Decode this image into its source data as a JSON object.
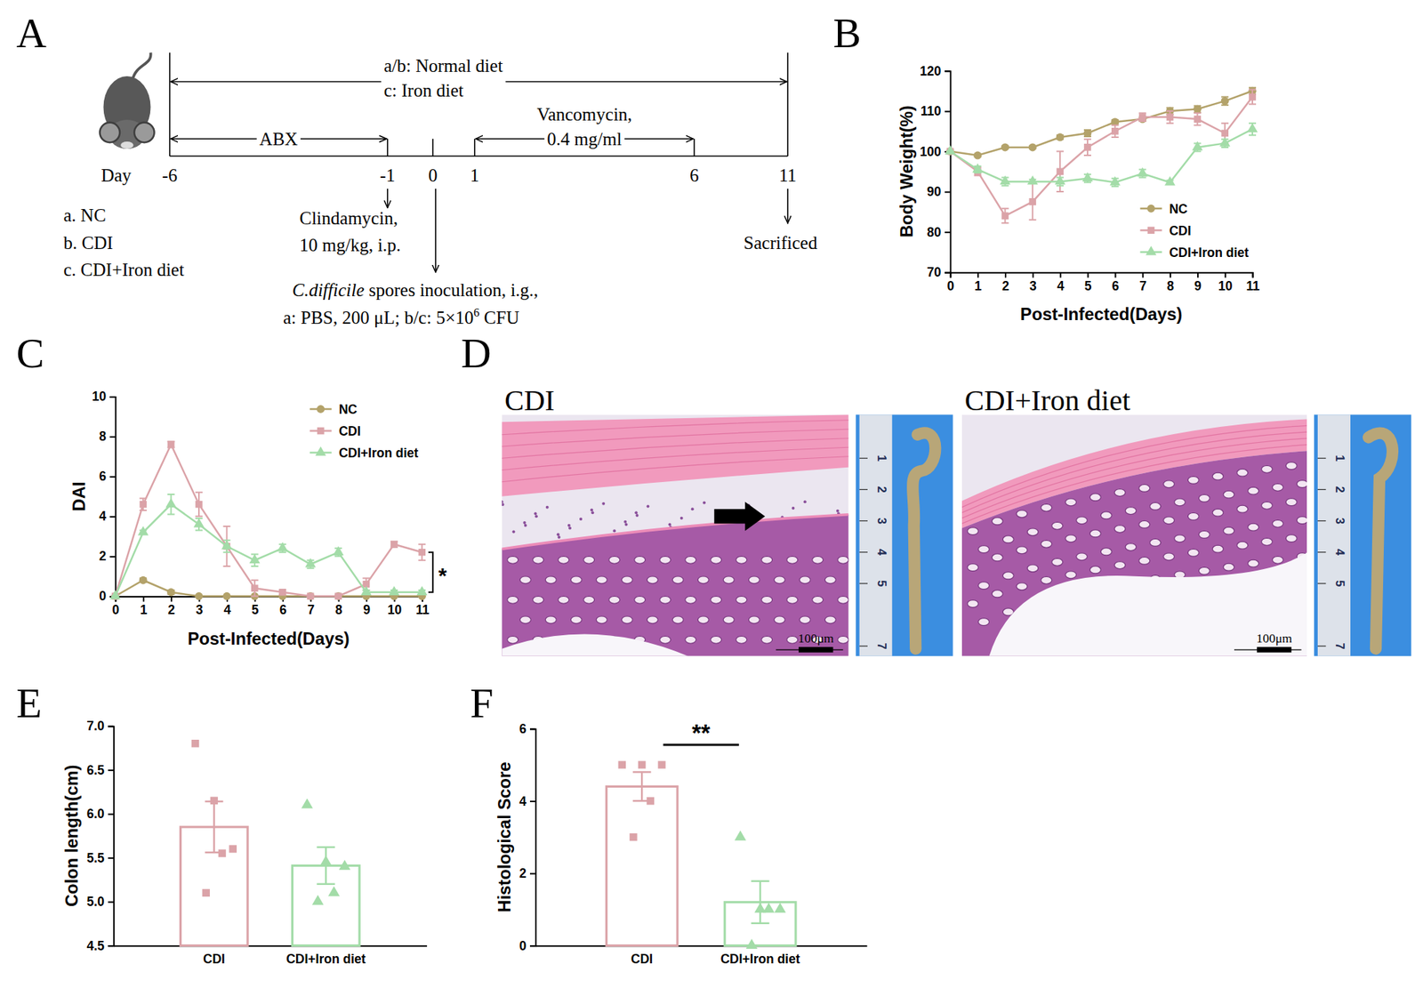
{
  "panel_labels": [
    "A",
    "B",
    "C",
    "D",
    "E",
    "F"
  ],
  "diagram": {
    "groups": [
      "a. NC",
      "b. CDI",
      "c. CDI+Iron diet"
    ],
    "diet": [
      "a/b: Normal diet",
      "c: Iron diet"
    ],
    "timeline": {
      "label": "Day",
      "days": [
        -6,
        -1,
        0,
        1,
        6,
        11
      ]
    },
    "abx": "ABX",
    "vancomycin": [
      "Vancomycin,",
      "0.4 mg/ml"
    ],
    "clindamycin": [
      "Clindamycin,",
      "10 mg/kg, i.p."
    ],
    "inoculation": {
      "species": "C.difficile",
      "line1": " spores inoculation, i.g.,",
      "line2": "a: PBS, 200 μL; b/c: 5×10",
      "line2_sup": "6",
      "line2_end": " CFU"
    },
    "sacrificed": "Sacrificed"
  },
  "chart_data": [
    {
      "type": "line",
      "x_label": "Post-Infected(Days)",
      "y_label": "Body Weight(%)",
      "x": [
        0,
        1,
        2,
        3,
        4,
        5,
        6,
        7,
        8,
        9,
        10,
        11
      ],
      "xlim": [
        0,
        11
      ],
      "ylim": [
        70,
        120
      ],
      "xticks": [
        0,
        1,
        2,
        3,
        4,
        5,
        6,
        7,
        8,
        9,
        10,
        11
      ],
      "yticks": [
        70,
        80,
        90,
        100,
        110,
        120
      ],
      "legend": "bottom-right",
      "series": [
        {
          "name": "NC",
          "color": "#b3a26a",
          "marker": "circle",
          "values": [
            100,
            99,
            101,
            101,
            103.5,
            104.5,
            107.3,
            108,
            110,
            110.5,
            112.5,
            115
          ],
          "errors": [
            0,
            0.3,
            0.3,
            0.3,
            0.5,
            0.8,
            0.5,
            0.5,
            0.8,
            0.8,
            1,
            0.8
          ]
        },
        {
          "name": "CDI",
          "color": "#dba3a8",
          "marker": "square",
          "values": [
            100,
            95,
            84,
            87.5,
            95,
            101,
            105,
            108.5,
            108.5,
            108,
            104.5,
            113.5
          ],
          "errors": [
            0,
            1,
            1.8,
            4.5,
            5,
            2,
            1.5,
            1,
            1.5,
            1.5,
            2.5,
            1.8
          ]
        },
        {
          "name": "CDI+Iron diet",
          "color": "#a3dca8",
          "marker": "triangle",
          "values": [
            100,
            95.5,
            92.5,
            92.5,
            92.5,
            93.3,
            92.3,
            94.5,
            92.3,
            101,
            102,
            105.5
          ],
          "errors": [
            0,
            0.8,
            1,
            0.5,
            1,
            1,
            1,
            1,
            0.5,
            1,
            1,
            1.5
          ]
        }
      ]
    },
    {
      "type": "line",
      "x_label": "Post-Infected(Days)",
      "y_label": "DAI",
      "x": [
        0,
        1,
        2,
        3,
        4,
        5,
        6,
        7,
        8,
        9,
        10,
        11
      ],
      "xlim": [
        0,
        11
      ],
      "ylim": [
        0,
        10
      ],
      "xticks": [
        0,
        1,
        2,
        3,
        4,
        5,
        6,
        7,
        8,
        9,
        10,
        11
      ],
      "yticks": [
        0,
        2,
        4,
        6,
        8,
        10
      ],
      "legend": "top-right",
      "annotations": [
        {
          "text": "*"
        }
      ],
      "series": [
        {
          "name": "NC",
          "color": "#b3a26a",
          "marker": "circle",
          "values": [
            0,
            0.8,
            0.2,
            0,
            0,
            0,
            0,
            0,
            0,
            0,
            0,
            0
          ],
          "errors": [
            0,
            0.1,
            0.1,
            0,
            0,
            0,
            0,
            0,
            0,
            0,
            0,
            0
          ]
        },
        {
          "name": "CDI",
          "color": "#dba3a8",
          "marker": "square",
          "values": [
            0,
            4.6,
            7.6,
            4.6,
            2.5,
            0.4,
            0.2,
            0,
            0,
            0.6,
            2.6,
            2.2
          ],
          "errors": [
            0,
            0.3,
            0.15,
            0.6,
            1,
            0.4,
            0.1,
            0,
            0,
            0.3,
            0.15,
            0.4
          ]
        },
        {
          "name": "CDI+Iron diet",
          "color": "#a3dca8",
          "marker": "triangle",
          "values": [
            0,
            3.2,
            4.6,
            3.6,
            2.5,
            1.8,
            2.4,
            1.6,
            2.2,
            0.2,
            0.2,
            0.2
          ],
          "errors": [
            0,
            0.1,
            0.5,
            0.3,
            0.3,
            0.3,
            0.2,
            0.2,
            0.2,
            0.1,
            0.1,
            0.1
          ]
        }
      ]
    },
    {
      "type": "bar",
      "y_label": "Colon length(cm)",
      "categories": [
        "CDI",
        "CDI+Iron diet"
      ],
      "values": [
        5.85,
        5.41
      ],
      "errors": [
        0.29,
        0.21
      ],
      "points": [
        [
          6.8,
          6.15,
          5.6,
          5.55,
          5.1
        ],
        [
          6.1,
          5.45,
          5.4,
          5.1,
          5.0
        ]
      ],
      "colors": [
        "#dba3a8",
        "#a3dca8"
      ],
      "ylim": [
        4.5,
        7.0
      ],
      "yticks": [
        4.5,
        {
          "value": 5,
          "label": "5.0"
        },
        5.5,
        {
          "value": 6,
          "label": "6.0"
        },
        6.5,
        {
          "value": 7,
          "label": "7.0"
        }
      ]
    },
    {
      "type": "bar",
      "y_label": "Histological Score",
      "categories": [
        "CDI",
        "CDI+Iron diet"
      ],
      "values": [
        4.4,
        1.2
      ],
      "errors": [
        0.4,
        0.58
      ],
      "points": [
        [
          5,
          5,
          5,
          4,
          3
        ],
        [
          3,
          1,
          1,
          1,
          0
        ]
      ],
      "colors": [
        "#dba3a8",
        "#a3dca8"
      ],
      "ylim": [
        0,
        6
      ],
      "yticks": [
        0,
        2,
        4,
        6
      ],
      "annotations": [
        {
          "text": "**"
        }
      ]
    }
  ],
  "images": [
    {
      "title": "CDI",
      "scale_bar": "100μm",
      "ruler_ticks": [
        1,
        2,
        3,
        4,
        5,
        7
      ]
    },
    {
      "title": "CDI+Iron diet",
      "scale_bar": "100μm",
      "ruler_ticks": [
        1,
        2,
        3,
        4,
        5,
        7
      ]
    }
  ]
}
